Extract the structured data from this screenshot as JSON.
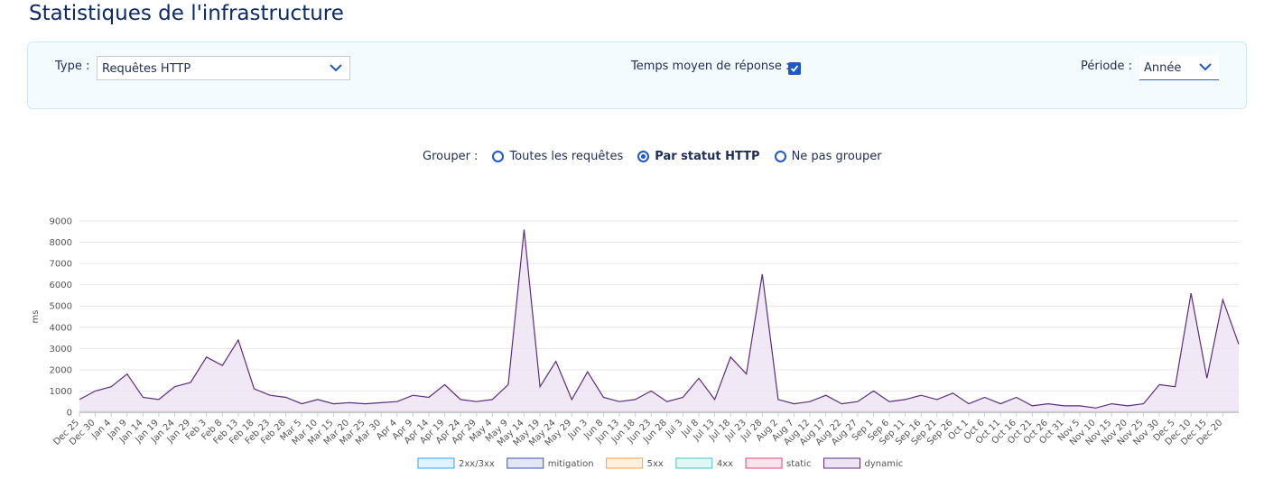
{
  "header": {
    "title": "Statistiques de l'infrastructure"
  },
  "filters": {
    "type_label": "Type :",
    "type_value": "Requêtes HTTP",
    "response_time_label": "Temps moyen de réponse :",
    "response_time_checked": true,
    "period_label": "Période :",
    "period_value": "Année"
  },
  "grouping": {
    "label": "Grouper :",
    "options": [
      {
        "label": "Toutes les requêtes",
        "selected": false
      },
      {
        "label": "Par statut HTTP",
        "selected": true
      },
      {
        "label": "Ne pas grouper",
        "selected": false
      }
    ]
  },
  "chart_data": {
    "type": "line",
    "y_label": "ms",
    "categories": [
      "Dec 25",
      "Dec 30",
      "Jan 4",
      "Jan 9",
      "Jan 14",
      "Jan 19",
      "Jan 24",
      "Jan 29",
      "Feb 3",
      "Feb 8",
      "Feb 13",
      "Feb 18",
      "Feb 23",
      "Feb 28",
      "Mar 5",
      "Mar 10",
      "Mar 15",
      "Mar 20",
      "Mar 25",
      "Mar 30",
      "Apr 4",
      "Apr 9",
      "Apr 14",
      "Apr 19",
      "Apr 24",
      "Apr 29",
      "May 4",
      "May 9",
      "May 14",
      "May 19",
      "May 24",
      "May 29",
      "Jun 3",
      "Jun 8",
      "Jun 13",
      "Jun 18",
      "Jun 23",
      "Jun 28",
      "Jul 3",
      "Jul 8",
      "Jul 13",
      "Jul 18",
      "Jul 23",
      "Jul 28",
      "Aug 2",
      "Aug 7",
      "Aug 12",
      "Aug 17",
      "Aug 22",
      "Aug 27",
      "Sep 1",
      "Sep 6",
      "Sep 11",
      "Sep 16",
      "Sep 21",
      "Sep 26",
      "Oct 1",
      "Oct 6",
      "Oct 11",
      "Oct 16",
      "Oct 21",
      "Oct 26",
      "Oct 31",
      "Nov 5",
      "Nov 10",
      "Nov 15",
      "Nov 20",
      "Nov 25",
      "Nov 30",
      "Dec 5",
      "Dec 10",
      "Dec 15",
      "Dec 20",
      null
    ],
    "series": [
      {
        "name": "2xx/3xx",
        "color": "#36a2eb",
        "fill": "#dff2fd",
        "values": [
          0,
          0,
          0,
          0,
          0,
          0,
          0,
          0,
          0,
          0,
          0,
          0,
          0,
          0,
          0,
          0,
          0,
          0,
          0,
          0,
          0,
          0,
          0,
          0,
          0,
          0,
          0,
          0,
          0,
          0,
          0,
          0,
          0,
          0,
          0,
          0,
          0,
          0,
          0,
          0,
          0,
          0,
          0,
          0,
          0,
          0,
          0,
          0,
          0,
          0,
          0,
          0,
          0,
          0,
          0,
          0,
          0,
          0,
          0,
          0,
          0,
          0,
          0,
          0,
          0,
          0,
          0,
          0,
          0,
          0,
          0,
          0,
          0,
          0
        ]
      },
      {
        "name": "mitigation",
        "color": "#3f51b5",
        "fill": "#e3e6f5",
        "values": [
          30,
          30,
          30,
          30,
          30,
          30,
          30,
          30,
          30,
          30,
          30,
          30,
          30,
          30,
          30,
          30,
          30,
          30,
          30,
          30,
          30,
          30,
          30,
          30,
          30,
          30,
          30,
          30,
          30,
          30,
          30,
          30,
          30,
          30,
          30,
          30,
          30,
          30,
          30,
          30,
          30,
          30,
          30,
          30,
          30,
          30,
          30,
          30,
          30,
          30,
          30,
          30,
          30,
          30,
          30,
          30,
          30,
          30,
          30,
          30,
          30,
          30,
          30,
          30,
          30,
          30,
          30,
          30,
          30,
          30,
          30,
          30,
          30,
          30
        ]
      },
      {
        "name": "5xx",
        "color": "#ff9f40",
        "fill": "#fff0e0",
        "values": [
          0,
          0,
          0,
          0,
          0,
          0,
          0,
          0,
          0,
          0,
          0,
          0,
          0,
          0,
          0,
          0,
          0,
          0,
          0,
          0,
          0,
          0,
          0,
          0,
          0,
          0,
          0,
          0,
          0,
          0,
          0,
          0,
          0,
          0,
          0,
          0,
          0,
          0,
          0,
          0,
          0,
          0,
          0,
          0,
          0,
          0,
          0,
          0,
          0,
          0,
          0,
          0,
          0,
          0,
          0,
          0,
          0,
          0,
          0,
          0,
          0,
          0,
          0,
          0,
          0,
          0,
          0,
          0,
          0,
          0,
          0,
          0,
          0,
          0
        ]
      },
      {
        "name": "4xx",
        "color": "#4bc0c0",
        "fill": "#e2f6f6",
        "values": [
          0,
          0,
          0,
          0,
          0,
          0,
          0,
          0,
          0,
          0,
          0,
          0,
          0,
          0,
          0,
          0,
          0,
          0,
          0,
          0,
          0,
          0,
          0,
          0,
          0,
          0,
          0,
          0,
          0,
          0,
          0,
          0,
          0,
          0,
          0,
          0,
          0,
          0,
          0,
          0,
          0,
          0,
          0,
          0,
          0,
          0,
          0,
          0,
          0,
          0,
          0,
          0,
          0,
          0,
          0,
          0,
          0,
          0,
          0,
          0,
          0,
          0,
          0,
          0,
          0,
          0,
          0,
          0,
          0,
          0,
          0,
          0,
          0,
          0
        ]
      },
      {
        "name": "static",
        "color": "#e0457b",
        "fill": "#fbe3ec",
        "values": [
          20,
          20,
          20,
          20,
          20,
          20,
          20,
          20,
          20,
          20,
          20,
          20,
          20,
          20,
          20,
          20,
          20,
          20,
          20,
          20,
          20,
          20,
          20,
          20,
          20,
          20,
          20,
          20,
          20,
          20,
          20,
          20,
          20,
          20,
          20,
          20,
          20,
          20,
          20,
          20,
          20,
          20,
          20,
          20,
          20,
          20,
          20,
          20,
          20,
          20,
          20,
          20,
          20,
          20,
          20,
          20,
          20,
          20,
          20,
          20,
          20,
          20,
          20,
          20,
          20,
          20,
          20,
          20,
          20,
          20,
          20,
          20,
          20,
          20
        ]
      },
      {
        "name": "dynamic",
        "color": "#5b2d7e",
        "fill": "#ece4f2",
        "values": [
          600,
          1000,
          1200,
          1800,
          700,
          600,
          1200,
          1400,
          2600,
          2200,
          3400,
          1100,
          800,
          700,
          400,
          600,
          400,
          450,
          400,
          450,
          500,
          800,
          700,
          1300,
          600,
          500,
          600,
          1300,
          8600,
          1200,
          2400,
          600,
          1900,
          700,
          500,
          600,
          1000,
          500,
          700,
          1600,
          600,
          2600,
          1800,
          6500,
          600,
          400,
          500,
          800,
          400,
          500,
          1000,
          500,
          600,
          800,
          600,
          900,
          400,
          700,
          400,
          700,
          300,
          400,
          300,
          300,
          200,
          400,
          300,
          400,
          1300,
          1200,
          5600,
          1600,
          5300,
          3200
        ]
      }
    ],
    "ylim": [
      0,
      9000
    ],
    "yticks": [
      0,
      1000,
      2000,
      3000,
      4000,
      5000,
      6000,
      7000,
      8000,
      9000
    ],
    "grid": true,
    "legend": "bottom"
  }
}
